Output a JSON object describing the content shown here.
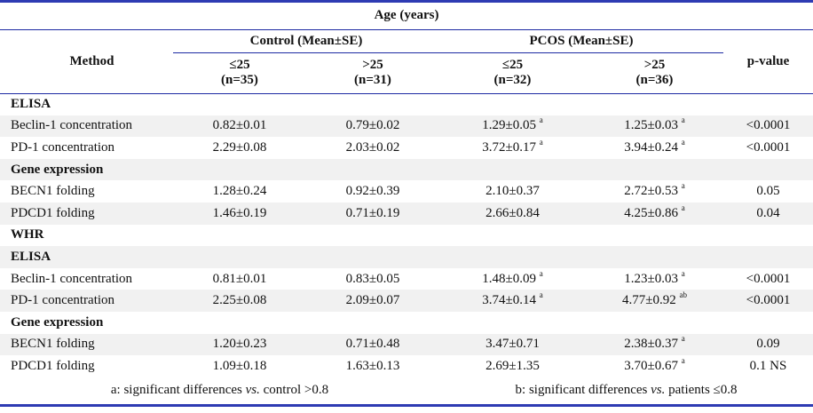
{
  "header": {
    "group": "Age (years)",
    "method": "Method",
    "control": "Control (Mean±SE)",
    "pcos": "PCOS (Mean±SE)",
    "pvalue": "p-value",
    "cols": [
      {
        "age": "≤25",
        "n": "(n=35)"
      },
      {
        "age": ">25",
        "n": "(n=31)"
      },
      {
        "age": "≤25",
        "n": "(n=32)"
      },
      {
        "age": ">25",
        "n": "(n=36)"
      }
    ]
  },
  "rows": [
    {
      "type": "section",
      "label": "ELISA",
      "bg": "w"
    },
    {
      "type": "data",
      "label": "Beclin-1 concentration",
      "bg": "alt",
      "c1": "0.82±0.01",
      "c2": "0.79±0.02",
      "c3": "1.29±0.05",
      "s3": "a",
      "c4": "1.25±0.03",
      "s4": "a",
      "p": "<0.0001"
    },
    {
      "type": "data",
      "label": "PD-1 concentration",
      "bg": "w",
      "c1": "2.29±0.08",
      "c2": "2.03±0.02",
      "c3": "3.72±0.17",
      "s3": "a",
      "c4": "3.94±0.24",
      "s4": "a",
      "p": "<0.0001"
    },
    {
      "type": "section",
      "label": "Gene expression",
      "bg": "alt"
    },
    {
      "type": "data",
      "label": "BECN1 folding",
      "bg": "w",
      "c1": "1.28±0.24",
      "c2": "0.92±0.39",
      "c3": "2.10±0.37",
      "s3": "",
      "c4": "2.72±0.53",
      "s4": "a",
      "p": "0.05"
    },
    {
      "type": "data",
      "label": "PDCD1 folding",
      "bg": "alt",
      "c1": "1.46±0.19",
      "c2": "0.71±0.19",
      "c3": "2.66±0.84",
      "s3": "",
      "c4": "4.25±0.86",
      "s4": "a",
      "p": "0.04"
    },
    {
      "type": "section",
      "label": "WHR",
      "bg": "w"
    },
    {
      "type": "section",
      "label": "ELISA",
      "bg": "alt"
    },
    {
      "type": "data",
      "label": "Beclin-1 concentration",
      "bg": "w",
      "c1": "0.81±0.01",
      "c2": "0.83±0.05",
      "c3": "1.48±0.09",
      "s3": "a",
      "c4": "1.23±0.03",
      "s4": "a",
      "p": "<0.0001"
    },
    {
      "type": "data",
      "label": "PD-1 concentration",
      "bg": "alt",
      "c1": "2.25±0.08",
      "c2": "2.09±0.07",
      "c3": "3.74±0.14",
      "s3": "a",
      "c4": "4.77±0.92",
      "s4": "ab",
      "p": "<0.0001"
    },
    {
      "type": "section",
      "label": "Gene expression",
      "bg": "w"
    },
    {
      "type": "data",
      "label": "BECN1 folding",
      "bg": "alt",
      "c1": "1.20±0.23",
      "c2": "0.71±0.48",
      "c3": "3.47±0.71",
      "s3": "",
      "c4": "2.38±0.37",
      "s4": "a",
      "p": "0.09"
    },
    {
      "type": "data",
      "label": "PDCD1 folding",
      "bg": "w",
      "c1": "1.09±0.18",
      "c2": "1.63±0.13",
      "c3": "2.69±1.35",
      "s3": "",
      "c4": "3.70±0.67",
      "s4": "a",
      "p": "0.1 NS"
    }
  ],
  "footnotes": {
    "a_pre": "a: significant differences ",
    "a_vs": "vs.",
    "a_post": " control >0.8",
    "b_pre": "b: significant differences ",
    "b_vs": "vs.",
    "b_post": " patients ≤0.8"
  }
}
